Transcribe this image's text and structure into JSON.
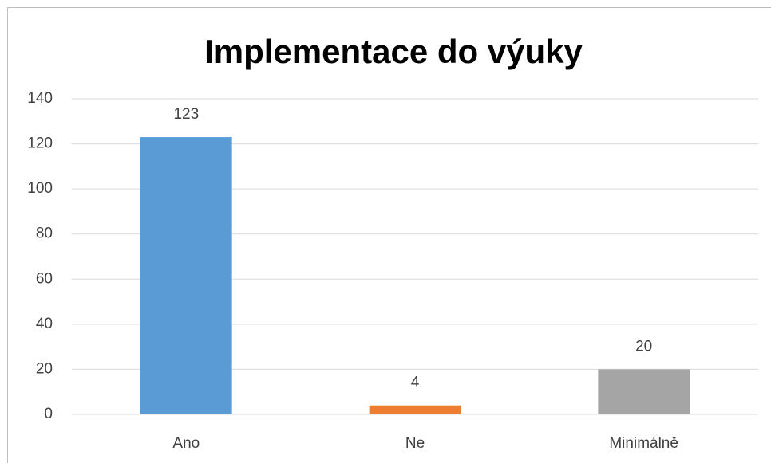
{
  "chart_data": {
    "type": "bar",
    "title": "Implementace do výuky",
    "categories": [
      "Ano",
      "Ne",
      "Minimálně"
    ],
    "values": [
      123,
      4,
      20
    ],
    "colors": [
      "#5b9bd5",
      "#ed7d31",
      "#a5a5a5"
    ],
    "ylim": [
      0,
      140
    ],
    "yticks": [
      0,
      20,
      40,
      60,
      80,
      100,
      120,
      140
    ],
    "grid": true
  }
}
